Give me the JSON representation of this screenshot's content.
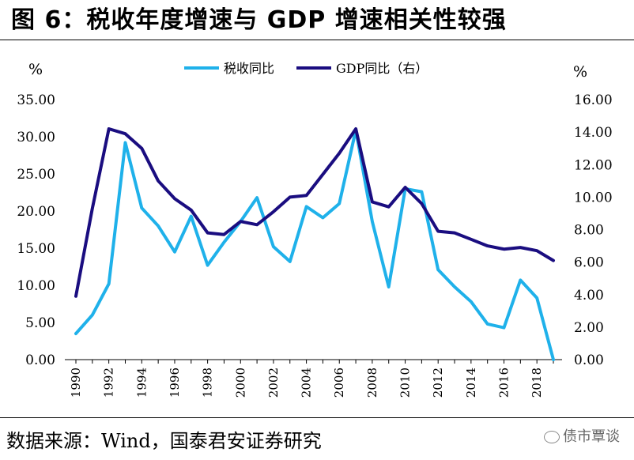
{
  "header": {
    "title": "图 6：税收年度增速与 GDP 增速相关性较强"
  },
  "footer": {
    "source": "数据来源：Wind，国泰君安证券研究",
    "watermark": "债市覃谈"
  },
  "colors": {
    "tax": "#1fb1ea",
    "gdp": "#1a0d80"
  },
  "chart_data": {
    "type": "line",
    "y_left_unit": "%",
    "y_right_unit": "%",
    "y_left_ticks": [
      "35.00",
      "30.00",
      "25.00",
      "20.00",
      "15.00",
      "10.00",
      "5.00",
      "0.00"
    ],
    "y_right_ticks": [
      "16.00",
      "14.00",
      "12.00",
      "10.00",
      "8.00",
      "6.00",
      "4.00",
      "2.00",
      "0.00"
    ],
    "ylim_left": [
      0,
      35
    ],
    "ylim_right": [
      0,
      16
    ],
    "x_tick_labels": [
      "1990",
      "1992",
      "1994",
      "1996",
      "1998",
      "2000",
      "2002",
      "2004",
      "2006",
      "2008",
      "2010",
      "2012",
      "2014",
      "2016",
      "2018"
    ],
    "x": [
      1990,
      1991,
      1992,
      1993,
      1994,
      1995,
      1996,
      1997,
      1998,
      1999,
      2000,
      2001,
      2002,
      2003,
      2004,
      2005,
      2006,
      2007,
      2008,
      2009,
      2010,
      2011,
      2012,
      2013,
      2014,
      2015,
      2016,
      2017,
      2018,
      2019
    ],
    "legend_position": "top-center",
    "series": [
      {
        "name": "税收同比",
        "axis": "left",
        "values": [
          3.5,
          6.0,
          10.2,
          29.2,
          20.4,
          18.0,
          14.5,
          19.3,
          12.7,
          15.8,
          18.6,
          21.8,
          15.2,
          13.2,
          20.6,
          19.1,
          21.0,
          30.9,
          18.6,
          9.8,
          23.0,
          22.6,
          12.1,
          9.8,
          7.8,
          4.8,
          4.3,
          10.7,
          8.3,
          0.0
        ]
      },
      {
        "name": "GDP同比（右）",
        "axis": "right",
        "values": [
          3.9,
          9.3,
          14.2,
          13.9,
          13.0,
          11.0,
          9.9,
          9.2,
          7.8,
          7.7,
          8.5,
          8.3,
          9.1,
          10.0,
          10.1,
          11.4,
          12.7,
          14.2,
          9.7,
          9.4,
          10.6,
          9.6,
          7.9,
          7.8,
          7.4,
          7.0,
          6.8,
          6.9,
          6.7,
          6.1
        ]
      }
    ]
  }
}
